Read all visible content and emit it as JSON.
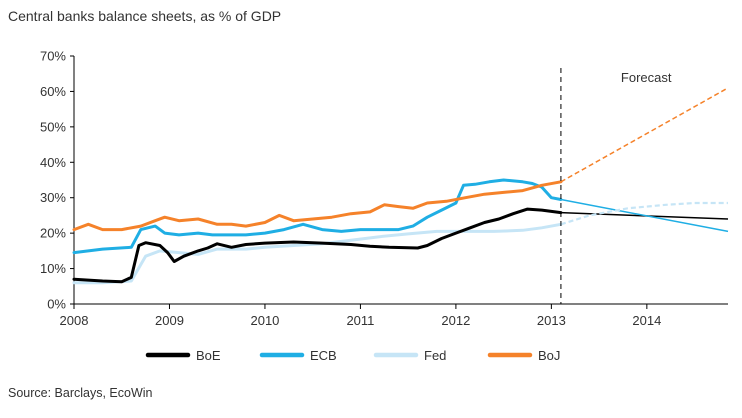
{
  "chart_data": {
    "type": "line",
    "title": "Central banks balance sheets, as % of GDP",
    "source": "Source: Barclays, EcoWin",
    "xlabel": "",
    "ylabel": "",
    "xlim": [
      2008.0,
      2014.85
    ],
    "ylim": [
      0,
      70
    ],
    "yticks": [
      0,
      10,
      20,
      30,
      40,
      50,
      60,
      70
    ],
    "ytick_labels": [
      "0%",
      "10%",
      "20%",
      "30%",
      "40%",
      "50%",
      "60%",
      "70%"
    ],
    "xticks": [
      2008,
      2009,
      2010,
      2011,
      2012,
      2013,
      2014
    ],
    "xtick_labels": [
      "2008",
      "2009",
      "2010",
      "2011",
      "2012",
      "2013",
      "2014"
    ],
    "grid": false,
    "legend_position": "bottom",
    "forecast_start": 2013.1,
    "annotation": "Forecast",
    "series": [
      {
        "name": "BoE",
        "color": "#000000",
        "x": [
          2008.0,
          2008.3,
          2008.5,
          2008.6,
          2008.68,
          2008.75,
          2008.9,
          2008.98,
          2009.05,
          2009.15,
          2009.3,
          2009.4,
          2009.5,
          2009.65,
          2009.8,
          2010.0,
          2010.3,
          2010.6,
          2010.9,
          2011.1,
          2011.3,
          2011.6,
          2011.7,
          2011.85,
          2012.0,
          2012.15,
          2012.3,
          2012.45,
          2012.6,
          2012.75,
          2012.9,
          2013.1
        ],
        "y": [
          7.0,
          6.5,
          6.3,
          7.5,
          16.5,
          17.3,
          16.5,
          14.5,
          12.0,
          13.5,
          15.0,
          15.8,
          17.0,
          16.0,
          16.8,
          17.2,
          17.5,
          17.2,
          16.8,
          16.3,
          16.0,
          15.8,
          16.5,
          18.5,
          20.0,
          21.5,
          23.0,
          24.0,
          25.5,
          26.8,
          26.5,
          25.8
        ]
      },
      {
        "name": "ECB",
        "color": "#1faee4",
        "x": [
          2008.0,
          2008.3,
          2008.6,
          2008.7,
          2008.85,
          2008.95,
          2009.1,
          2009.3,
          2009.45,
          2009.6,
          2009.8,
          2010.0,
          2010.2,
          2010.4,
          2010.6,
          2010.8,
          2011.0,
          2011.2,
          2011.4,
          2011.55,
          2011.7,
          2011.85,
          2012.0,
          2012.08,
          2012.2,
          2012.35,
          2012.5,
          2012.7,
          2012.8,
          2012.9,
          2013.0,
          2013.1
        ],
        "y": [
          14.5,
          15.5,
          16.0,
          21.0,
          22.0,
          20.0,
          19.5,
          20.0,
          19.5,
          19.5,
          19.5,
          20.0,
          21.0,
          22.5,
          21.0,
          20.5,
          21.0,
          21.0,
          21.0,
          22.0,
          24.5,
          26.5,
          28.5,
          33.5,
          33.8,
          34.5,
          35.0,
          34.5,
          34.0,
          33.0,
          30.0,
          29.5
        ]
      },
      {
        "name": "Fed",
        "color": "#c6e5f6",
        "x": [
          2008.0,
          2008.3,
          2008.6,
          2008.75,
          2008.9,
          2009.1,
          2009.3,
          2009.5,
          2009.8,
          2010.0,
          2010.3,
          2010.6,
          2010.9,
          2011.2,
          2011.5,
          2011.8,
          2012.1,
          2012.4,
          2012.7,
          2012.9,
          2013.1
        ],
        "y": [
          6.0,
          6.0,
          6.5,
          13.5,
          15.0,
          14.5,
          14.0,
          15.5,
          15.5,
          16.0,
          16.5,
          17.0,
          18.0,
          19.0,
          19.8,
          20.5,
          20.5,
          20.5,
          20.8,
          21.5,
          22.5
        ]
      },
      {
        "name": "BoJ",
        "color": "#f5822a",
        "x": [
          2008.0,
          2008.15,
          2008.3,
          2008.5,
          2008.7,
          2008.85,
          2008.95,
          2009.1,
          2009.3,
          2009.5,
          2009.65,
          2009.8,
          2010.0,
          2010.15,
          2010.3,
          2010.5,
          2010.7,
          2010.9,
          2011.1,
          2011.25,
          2011.4,
          2011.55,
          2011.7,
          2011.9,
          2012.1,
          2012.3,
          2012.5,
          2012.7,
          2012.9,
          2013.1
        ],
        "y": [
          21.0,
          22.5,
          21.0,
          21.0,
          22.0,
          23.5,
          24.5,
          23.5,
          24.0,
          22.5,
          22.5,
          22.0,
          23.0,
          25.0,
          23.5,
          24.0,
          24.5,
          25.5,
          26.0,
          28.0,
          27.5,
          27.0,
          28.5,
          29.0,
          30.0,
          31.0,
          31.5,
          32.0,
          33.5,
          34.5
        ]
      }
    ],
    "forecast_series": [
      {
        "name": "BoE",
        "color": "#000000",
        "dash": "none",
        "x": [
          2013.1,
          2014.85
        ],
        "y": [
          25.8,
          24.0
        ]
      },
      {
        "name": "ECB",
        "color": "#1faee4",
        "dash": "none",
        "x": [
          2013.1,
          2014.85
        ],
        "y": [
          29.5,
          20.5
        ]
      },
      {
        "name": "Fed",
        "color": "#c6e5f6",
        "dash": "5,3",
        "x": [
          2013.1,
          2013.4,
          2013.8,
          2014.2,
          2014.5,
          2014.85
        ],
        "y": [
          22.5,
          25.0,
          27.0,
          28.0,
          28.5,
          28.5
        ]
      },
      {
        "name": "BoJ",
        "color": "#f5822a",
        "dash": "5,3",
        "x": [
          2013.1,
          2014.85
        ],
        "y": [
          34.5,
          61.0
        ]
      }
    ]
  }
}
